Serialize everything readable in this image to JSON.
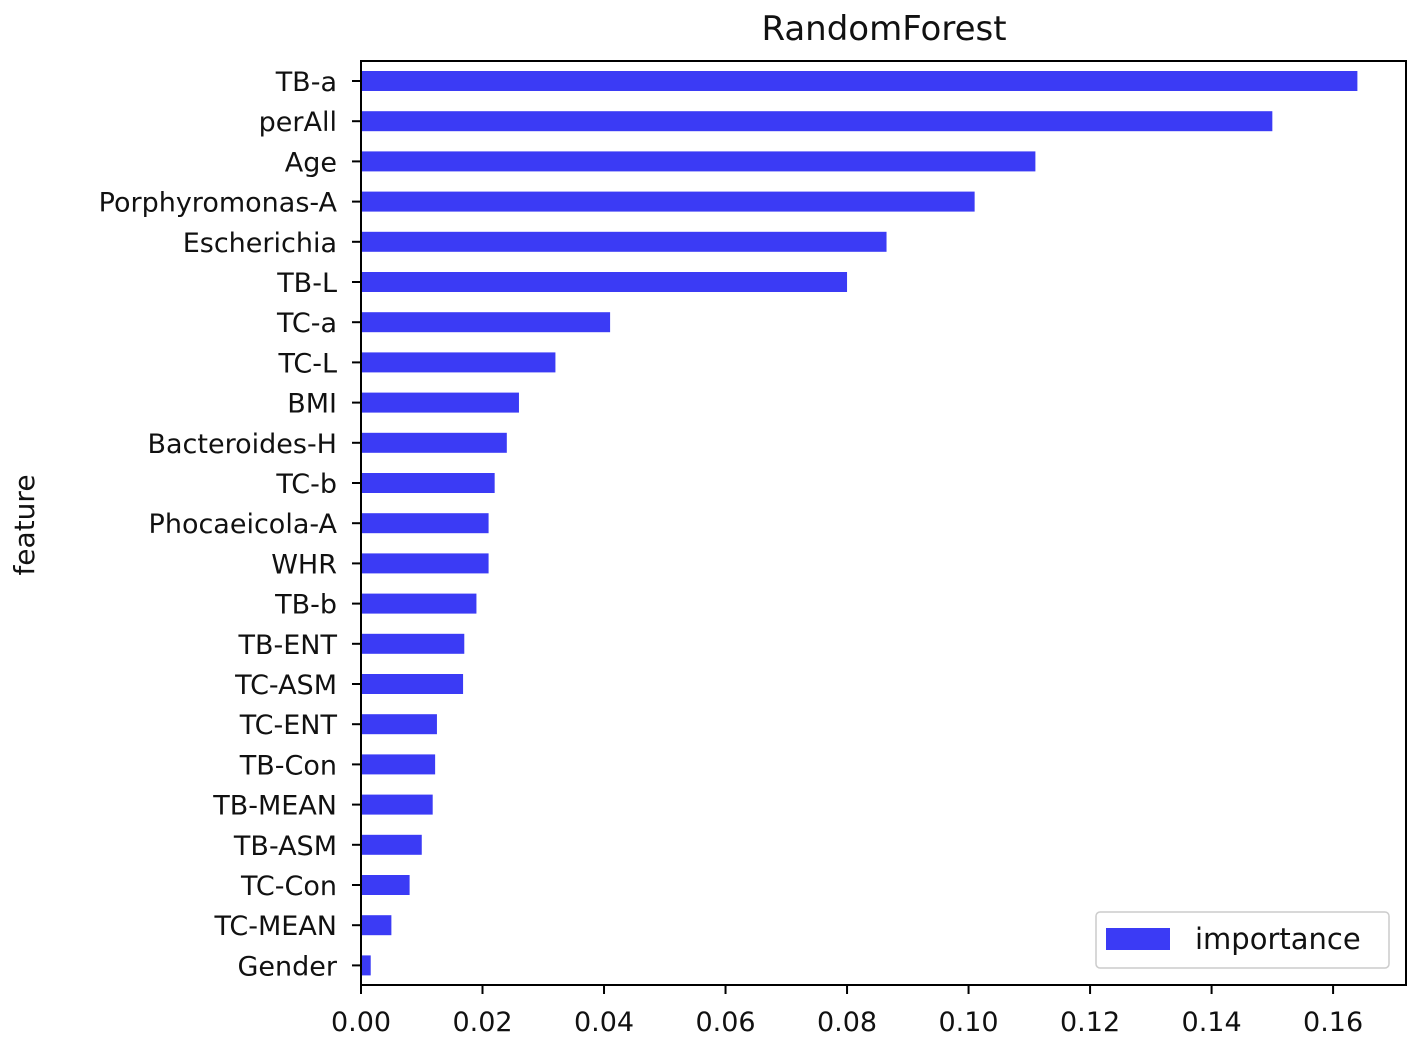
{
  "chart_data": {
    "type": "bar",
    "orientation": "horizontal",
    "title": "RandomForest",
    "xlabel": "",
    "ylabel": "feature",
    "xlim": [
      0,
      0.172
    ],
    "xticks": [
      "0.00",
      "0.02",
      "0.04",
      "0.06",
      "0.08",
      "0.10",
      "0.12",
      "0.14",
      "0.16"
    ],
    "grid": false,
    "legend_position": "lower right",
    "bar_color": "#3b3bf5",
    "categories": [
      "TB-a",
      "perAll",
      "Age",
      "Porphyromonas-A",
      "Escherichia",
      "TB-L",
      "TC-a",
      "TC-L",
      "BMI",
      "Bacteroides-H",
      "TC-b",
      "Phocaeicola-A",
      "WHR",
      "TB-b",
      "TB-ENT",
      "TC-ASM",
      "TC-ENT",
      "TB-Con",
      "TB-MEAN",
      "TB-ASM",
      "TC-Con",
      "TC-MEAN",
      "Gender"
    ],
    "series": [
      {
        "name": "importance",
        "values": [
          0.164,
          0.15,
          0.111,
          0.101,
          0.0865,
          0.08,
          0.041,
          0.032,
          0.026,
          0.024,
          0.022,
          0.021,
          0.021,
          0.019,
          0.017,
          0.0168,
          0.0125,
          0.0122,
          0.0118,
          0.01,
          0.008,
          0.005,
          0.0016
        ]
      }
    ]
  }
}
